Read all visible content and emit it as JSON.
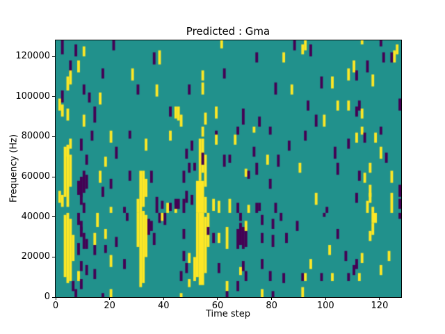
{
  "figure": {
    "title": "Predicted : Gma",
    "xlabel": "Time step",
    "ylabel": "Frequency (Hz)"
  },
  "chart_data": {
    "type": "heatmap",
    "title": "Predicted : Gma",
    "xlabel": "Time step",
    "ylabel": "Frequency (Hz)",
    "x_range": [
      0,
      128
    ],
    "y_range_hz": [
      0,
      128000
    ],
    "x_ticks": [
      0,
      20,
      40,
      60,
      80,
      100,
      120
    ],
    "y_ticks": [
      0,
      20000,
      40000,
      60000,
      80000,
      100000,
      120000
    ],
    "grid": {
      "cols": 128,
      "rows": 128,
      "bin_hz": 1000
    },
    "legend": "none",
    "colors": {
      "background": "#21918c",
      "p": "#440154",
      "y": "#fde725"
    },
    "color_meaning": {
      "background": "viridis mid (class 0)",
      "p": "viridis low (class -1)",
      "y": "viridis high (class +1)"
    },
    "cells_format": "[time_col, freq_bin_low, freq_bin_high_exclusive, class, optional_col_width]",
    "cells": [
      [
        2,
        121,
        128,
        "p"
      ],
      [
        7,
        120,
        126,
        "p"
      ],
      [
        10,
        120,
        125,
        "y"
      ],
      [
        21,
        123,
        128,
        "p"
      ],
      [
        5,
        112,
        118,
        "p"
      ],
      [
        8,
        112,
        118,
        "y"
      ],
      [
        5,
        106,
        113,
        "y"
      ],
      [
        4,
        103,
        110,
        "y"
      ],
      [
        17,
        109,
        114,
        "p"
      ],
      [
        28,
        108,
        114,
        "y"
      ],
      [
        36,
        116,
        122,
        "p"
      ],
      [
        38,
        116,
        123,
        "y"
      ],
      [
        10,
        101,
        106,
        "p"
      ],
      [
        12,
        97,
        102,
        "p"
      ],
      [
        16,
        96,
        102,
        "y"
      ],
      [
        2,
        97,
        103,
        "p"
      ],
      [
        1,
        93,
        99,
        "y"
      ],
      [
        2,
        90,
        96,
        "y"
      ],
      [
        4,
        88,
        94,
        "y"
      ],
      [
        14,
        87,
        95,
        "p"
      ],
      [
        10,
        85,
        91,
        "y"
      ],
      [
        30,
        101,
        106,
        "p"
      ],
      [
        37,
        100,
        106,
        "y"
      ],
      [
        42,
        90,
        95,
        "p"
      ],
      [
        44,
        89,
        95,
        "y"
      ],
      [
        61,
        124,
        128,
        "y"
      ],
      [
        74,
        117,
        122,
        "p"
      ],
      [
        84,
        117,
        122,
        "y"
      ],
      [
        88,
        123,
        128,
        "p"
      ],
      [
        54,
        108,
        113,
        "y"
      ],
      [
        62,
        109,
        114,
        "p"
      ],
      [
        49,
        101,
        106,
        "p"
      ],
      [
        54,
        101,
        107,
        "y"
      ],
      [
        81,
        101,
        107,
        "p"
      ],
      [
        87,
        101,
        106,
        "y"
      ],
      [
        59,
        89,
        95,
        "y"
      ],
      [
        69,
        86,
        94,
        "p"
      ],
      [
        45,
        88,
        95,
        "y"
      ],
      [
        46,
        85,
        91,
        "y"
      ],
      [
        55,
        86,
        92,
        "y"
      ],
      [
        75,
        85,
        90,
        "p"
      ],
      [
        92,
        123,
        128,
        "y"
      ],
      [
        91,
        121,
        126,
        "y"
      ],
      [
        94,
        120,
        126,
        "p"
      ],
      [
        126,
        121,
        126,
        "y"
      ],
      [
        121,
        117,
        122,
        "p"
      ],
      [
        124,
        117,
        122,
        "p"
      ],
      [
        125,
        117,
        123,
        "y"
      ],
      [
        110,
        112,
        118,
        "y"
      ],
      [
        115,
        112,
        118,
        "p"
      ],
      [
        108,
        108,
        114,
        "y"
      ],
      [
        111,
        108,
        113,
        "p"
      ],
      [
        98,
        104,
        110,
        "p"
      ],
      [
        102,
        104,
        110,
        "y"
      ],
      [
        117,
        105,
        111,
        "y"
      ],
      [
        93,
        93,
        98,
        "p"
      ],
      [
        104,
        93,
        98,
        "y"
      ],
      [
        108,
        93,
        98,
        "y"
      ],
      [
        111,
        90,
        95,
        "p"
      ],
      [
        112,
        93,
        98,
        "p"
      ],
      [
        113,
        89,
        94,
        "y"
      ],
      [
        96,
        85,
        91,
        "p"
      ],
      [
        99,
        85,
        91,
        "y"
      ],
      [
        127,
        93,
        99,
        "p"
      ],
      [
        113,
        126,
        128,
        "y"
      ],
      [
        120,
        125,
        128,
        "p"
      ],
      [
        13,
        78,
        83,
        "p"
      ],
      [
        20,
        77,
        83,
        "y"
      ],
      [
        27,
        79,
        83,
        "p"
      ],
      [
        42,
        78,
        83,
        "y"
      ],
      [
        5,
        74,
        79,
        "y"
      ],
      [
        9,
        73,
        79,
        "p"
      ],
      [
        33,
        73,
        79,
        "y"
      ],
      [
        4,
        70,
        75,
        "y"
      ],
      [
        22,
        69,
        75,
        "p"
      ],
      [
        11,
        66,
        71,
        "p"
      ],
      [
        18,
        65,
        70,
        "y"
      ],
      [
        3,
        50,
        75,
        "y"
      ],
      [
        4,
        45,
        76,
        "y"
      ],
      [
        5,
        55,
        71,
        "y"
      ],
      [
        2,
        45,
        51,
        "y"
      ],
      [
        8,
        51,
        58,
        "p"
      ],
      [
        9,
        50,
        60,
        "p"
      ],
      [
        10,
        52,
        63,
        "p"
      ],
      [
        11,
        54,
        61,
        "p"
      ],
      [
        31,
        43,
        63,
        "y"
      ],
      [
        32,
        45,
        63,
        "y"
      ],
      [
        33,
        50,
        59,
        "y"
      ],
      [
        35,
        57,
        63,
        "p"
      ],
      [
        27,
        58,
        63,
        "p"
      ],
      [
        16,
        57,
        63,
        "y"
      ],
      [
        20,
        54,
        59,
        "p"
      ],
      [
        17,
        50,
        55,
        "p"
      ],
      [
        1,
        47,
        53,
        "y"
      ],
      [
        9,
        46,
        52,
        "p"
      ],
      [
        10,
        42,
        47,
        "p"
      ],
      [
        20,
        42,
        45,
        "y"
      ],
      [
        25,
        42,
        45,
        "p"
      ],
      [
        37,
        42,
        50,
        "p"
      ],
      [
        39,
        44,
        48,
        "p"
      ],
      [
        41,
        42,
        47,
        "y"
      ],
      [
        42,
        43,
        47,
        "p"
      ],
      [
        44,
        42,
        46,
        "y"
      ],
      [
        30,
        42,
        49,
        "y"
      ],
      [
        54,
        80,
        85,
        "y"
      ],
      [
        73,
        82,
        85,
        "y"
      ],
      [
        67,
        81,
        85,
        "p"
      ],
      [
        79,
        81,
        85,
        "p"
      ],
      [
        59,
        78,
        83,
        "p"
      ],
      [
        66,
        76,
        81,
        "y"
      ],
      [
        50,
        73,
        78,
        "p"
      ],
      [
        48,
        69,
        74,
        "p"
      ],
      [
        53,
        58,
        79,
        "y"
      ],
      [
        54,
        62,
        79,
        "y"
      ],
      [
        55,
        55,
        71,
        "y"
      ],
      [
        54,
        66,
        72,
        "p"
      ],
      [
        59,
        76,
        81,
        "y"
      ],
      [
        73,
        70,
        75,
        "p"
      ],
      [
        78,
        66,
        71,
        "y"
      ],
      [
        62,
        65,
        71,
        "p"
      ],
      [
        64,
        67,
        71,
        "p"
      ],
      [
        49,
        62,
        67,
        "p"
      ],
      [
        51,
        63,
        67,
        "p"
      ],
      [
        74,
        61,
        67,
        "p"
      ],
      [
        47,
        57,
        63,
        "p"
      ],
      [
        70,
        60,
        64,
        "y"
      ],
      [
        71,
        59,
        63,
        "p"
      ],
      [
        79,
        54,
        59,
        "p"
      ],
      [
        82,
        65,
        71,
        "p"
      ],
      [
        86,
        73,
        78,
        "p"
      ],
      [
        52,
        42,
        58,
        "y",
        3
      ],
      [
        55,
        42,
        50,
        "y"
      ],
      [
        48,
        47,
        53,
        "p"
      ],
      [
        50,
        46,
        51,
        "p"
      ],
      [
        44,
        44,
        49,
        "p",
        2
      ],
      [
        47,
        42,
        49,
        "p"
      ],
      [
        58,
        43,
        49,
        "y"
      ],
      [
        60,
        42,
        48,
        "y"
      ],
      [
        64,
        42,
        49,
        "y"
      ],
      [
        67,
        42,
        47,
        "p"
      ],
      [
        74,
        42,
        47,
        "p"
      ],
      [
        75,
        43,
        47,
        "p"
      ],
      [
        71,
        42,
        46,
        "y"
      ],
      [
        81,
        42,
        47,
        "p"
      ],
      [
        92,
        78,
        83,
        "p"
      ],
      [
        113,
        81,
        85,
        "y"
      ],
      [
        120,
        81,
        85,
        "p"
      ],
      [
        111,
        77,
        82,
        "y"
      ],
      [
        114,
        77,
        82,
        "p"
      ],
      [
        118,
        77,
        82,
        "y"
      ],
      [
        108,
        74,
        79,
        "p"
      ],
      [
        120,
        69,
        75,
        "y"
      ],
      [
        103,
        69,
        75,
        "p"
      ],
      [
        122,
        67,
        72,
        "p"
      ],
      [
        90,
        62,
        67,
        "y"
      ],
      [
        104,
        61,
        67,
        "p"
      ],
      [
        116,
        62,
        67,
        "y"
      ],
      [
        112,
        58,
        63,
        "p"
      ],
      [
        114,
        57,
        62,
        "y"
      ],
      [
        124,
        57,
        63,
        "y"
      ],
      [
        116,
        50,
        56,
        "y"
      ],
      [
        127,
        50,
        56,
        "p"
      ],
      [
        96,
        46,
        52,
        "y"
      ],
      [
        111,
        47,
        52,
        "p"
      ],
      [
        116,
        47,
        52,
        "y"
      ],
      [
        115,
        42,
        48,
        "y"
      ],
      [
        124,
        42,
        52,
        "y"
      ],
      [
        100,
        42,
        45,
        "p"
      ],
      [
        117,
        42,
        45,
        "y"
      ],
      [
        127,
        44,
        49,
        "p"
      ],
      [
        3,
        10,
        41,
        "y"
      ],
      [
        4,
        7,
        42,
        "y"
      ],
      [
        5,
        8,
        39,
        "y"
      ],
      [
        6,
        18,
        31,
        "y"
      ],
      [
        8,
        36,
        42,
        "p"
      ],
      [
        15,
        35,
        42,
        "y"
      ],
      [
        26,
        38,
        42,
        "p"
      ],
      [
        30,
        25,
        42,
        "y"
      ],
      [
        31,
        5,
        43,
        "y"
      ],
      [
        32,
        7,
        43,
        "y"
      ],
      [
        33,
        20,
        41,
        "y"
      ],
      [
        34,
        31,
        39,
        "p"
      ],
      [
        35,
        33,
        38,
        "p"
      ],
      [
        36,
        26,
        32,
        "p"
      ],
      [
        38,
        37,
        42,
        "p"
      ],
      [
        39,
        38,
        42,
        "y"
      ],
      [
        40,
        36,
        42,
        "p"
      ],
      [
        9,
        33,
        38,
        "p"
      ],
      [
        9,
        30,
        35,
        "p"
      ],
      [
        18,
        29,
        34,
        "y"
      ],
      [
        10,
        24,
        32,
        "p"
      ],
      [
        11,
        24,
        29,
        "p"
      ],
      [
        8,
        21,
        27,
        "p"
      ],
      [
        14,
        26,
        32,
        "y"
      ],
      [
        14,
        21,
        26,
        "p"
      ],
      [
        18,
        22,
        26,
        "p"
      ],
      [
        22,
        25,
        30,
        "p"
      ],
      [
        20,
        15,
        21,
        "y"
      ],
      [
        25,
        14,
        19,
        "p"
      ],
      [
        9,
        13,
        18,
        "p"
      ],
      [
        11,
        11,
        16,
        "p"
      ],
      [
        8,
        8,
        13,
        "y"
      ],
      [
        14,
        9,
        14,
        "p"
      ],
      [
        9,
        4,
        9,
        "p"
      ],
      [
        6,
        3,
        8,
        "p"
      ],
      [
        7,
        0,
        4,
        "p"
      ],
      [
        20,
        0,
        4,
        "y"
      ],
      [
        17,
        0,
        2,
        "p"
      ],
      [
        51,
        8,
        20,
        "y"
      ],
      [
        52,
        10,
        42,
        "y"
      ],
      [
        53,
        6,
        42,
        "y",
        2
      ],
      [
        55,
        12,
        40,
        "y"
      ],
      [
        56,
        25,
        42,
        "y"
      ],
      [
        47,
        29,
        34,
        "p"
      ],
      [
        56,
        31,
        35,
        "p"
      ],
      [
        58,
        27,
        32,
        "p"
      ],
      [
        60,
        27,
        32,
        "y"
      ],
      [
        63,
        24,
        35,
        "y"
      ],
      [
        67,
        24,
        34,
        "p"
      ],
      [
        68,
        26,
        37,
        "p"
      ],
      [
        69,
        24,
        35,
        "p"
      ],
      [
        70,
        25,
        33,
        "p"
      ],
      [
        68,
        38,
        42,
        "p"
      ],
      [
        70,
        33,
        38,
        "y"
      ],
      [
        76,
        36,
        41,
        "p"
      ],
      [
        80,
        34,
        39,
        "p"
      ],
      [
        83,
        38,
        42,
        "p"
      ],
      [
        76,
        27,
        32,
        "p"
      ],
      [
        80,
        25,
        31,
        "p"
      ],
      [
        85,
        27,
        32,
        "p"
      ],
      [
        47,
        18,
        23,
        "p"
      ],
      [
        49,
        17,
        22,
        "y"
      ],
      [
        48,
        12,
        17,
        "p"
      ],
      [
        46,
        8,
        13,
        "p"
      ],
      [
        60,
        12,
        17,
        "p"
      ],
      [
        69,
        13,
        18,
        "p"
      ],
      [
        68,
        11,
        15,
        "y"
      ],
      [
        70,
        8,
        13,
        "p"
      ],
      [
        76,
        14,
        19,
        "p"
      ],
      [
        79,
        8,
        13,
        "p"
      ],
      [
        84,
        7,
        12,
        "p"
      ],
      [
        49,
        5,
        9,
        "y"
      ],
      [
        67,
        3,
        8,
        "p"
      ],
      [
        63,
        3,
        8,
        "y"
      ],
      [
        63,
        0,
        3,
        "p"
      ],
      [
        76,
        0,
        4,
        "y"
      ],
      [
        46,
        0,
        2,
        "y"
      ],
      [
        80,
        0,
        3,
        "p"
      ],
      [
        99,
        40,
        42,
        "p"
      ],
      [
        117,
        37,
        42,
        "y",
        2
      ],
      [
        117,
        31,
        37,
        "y"
      ],
      [
        127,
        39,
        42,
        "p"
      ],
      [
        89,
        33,
        38,
        "p"
      ],
      [
        104,
        29,
        34,
        "p"
      ],
      [
        116,
        28,
        33,
        "y"
      ],
      [
        101,
        21,
        26,
        "y"
      ],
      [
        107,
        18,
        23,
        "p"
      ],
      [
        113,
        17,
        22,
        "y"
      ],
      [
        111,
        14,
        19,
        "p"
      ],
      [
        123,
        18,
        23,
        "y"
      ],
      [
        94,
        14,
        19,
        "y"
      ],
      [
        110,
        11,
        16,
        "p"
      ],
      [
        120,
        11,
        16,
        "y"
      ],
      [
        91,
        8,
        12,
        "p"
      ],
      [
        92,
        8,
        12,
        "y"
      ],
      [
        98,
        8,
        12,
        "p"
      ],
      [
        102,
        8,
        12,
        "y"
      ],
      [
        108,
        8,
        12,
        "p"
      ],
      [
        112,
        8,
        12,
        "y"
      ],
      [
        91,
        0,
        5,
        "y"
      ]
    ]
  }
}
